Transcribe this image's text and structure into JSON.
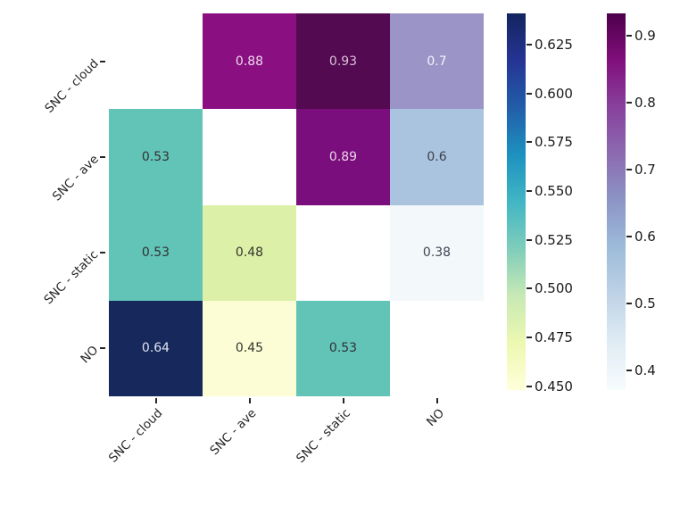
{
  "figure": {
    "background": "#ffffff",
    "axis_text_color": "#262626"
  },
  "chart_data": {
    "type": "heatmap",
    "title": "",
    "xlabel": "",
    "ylabel": "",
    "description": "Split correlation-style matrix: upper triangle colored with BuPu purple colormap, lower triangle with YlGnBu colormap, diagonal masked white",
    "categories": [
      "SNC - cloud",
      "SNC - ave",
      "SNC - static",
      "NO"
    ],
    "x_tick_labels": [
      "SNC - cloud",
      "SNC - ave",
      "SNC - static",
      "NO"
    ],
    "y_tick_labels": [
      "SNC - cloud",
      "SNC - ave",
      "SNC - static",
      "NO"
    ],
    "values": [
      [
        null,
        0.88,
        0.93,
        0.7
      ],
      [
        0.53,
        null,
        0.89,
        0.6
      ],
      [
        0.53,
        0.48,
        null,
        0.38
      ],
      [
        0.64,
        0.45,
        0.53,
        null
      ]
    ],
    "labels": [
      [
        "",
        "0.88",
        "0.93",
        "0.7"
      ],
      [
        "0.53",
        "",
        "0.89",
        "0.6"
      ],
      [
        "0.53",
        "0.48",
        "",
        "0.38"
      ],
      [
        "0.64",
        "0.45",
        "0.53",
        ""
      ]
    ],
    "cell_bg": [
      [
        "#ffffff",
        "#8a1082",
        "#530a51",
        "#9a94c7"
      ],
      [
        "#62c4b7",
        "#ffffff",
        "#7b0e7d",
        "#aac3de"
      ],
      [
        "#62c4b7",
        "#ddf0a7",
        "#ffffff",
        "#f3f8fb"
      ],
      [
        "#17295c",
        "#fcfdd5",
        "#62c4b7",
        "#ffffff"
      ]
    ],
    "cell_fg": [
      [
        "",
        "#eed9ec",
        "#dcc0da",
        "#f6f3fb"
      ],
      [
        "#2f3136",
        "",
        "#ecd4ea",
        "#3d4249"
      ],
      [
        "#2f3136",
        "#33362e",
        "",
        "#3c4752"
      ],
      [
        "#dfe4ef",
        "#33362e",
        "#2f3136",
        ""
      ]
    ],
    "colorbars": [
      {
        "name": "lower-triangle-colorbar",
        "colormap": "YlGnBu",
        "vmin": 0.448,
        "vmax": 0.641,
        "ticks": [
          {
            "v": 0.625,
            "label": "0.625"
          },
          {
            "v": 0.6,
            "label": "0.600"
          },
          {
            "v": 0.575,
            "label": "0.575"
          },
          {
            "v": 0.55,
            "label": "0.550"
          },
          {
            "v": 0.525,
            "label": "0.525"
          },
          {
            "v": 0.5,
            "label": "0.500"
          },
          {
            "v": 0.475,
            "label": "0.475"
          },
          {
            "v": 0.45,
            "label": "0.450"
          }
        ],
        "gradient_top_to_bottom": [
          "#12255e",
          "#253494",
          "#225ea8",
          "#1d91c0",
          "#41b6c4",
          "#7fcdbb",
          "#c7e9b4",
          "#edf8b1",
          "#ffffd9"
        ]
      },
      {
        "name": "upper-triangle-colorbar",
        "colormap": "BuPu",
        "vmin": 0.371,
        "vmax": 0.934,
        "ticks": [
          {
            "v": 0.9,
            "label": "0.9"
          },
          {
            "v": 0.8,
            "label": "0.8"
          },
          {
            "v": 0.7,
            "label": "0.7"
          },
          {
            "v": 0.6,
            "label": "0.6"
          },
          {
            "v": 0.5,
            "label": "0.5"
          },
          {
            "v": 0.4,
            "label": "0.4"
          }
        ],
        "gradient_top_to_bottom": [
          "#4d004b",
          "#810f7c",
          "#88419d",
          "#8c6bb1",
          "#8c96c6",
          "#9ebcda",
          "#bfd3e6",
          "#e0ecf4",
          "#f7fcfd"
        ]
      }
    ]
  }
}
